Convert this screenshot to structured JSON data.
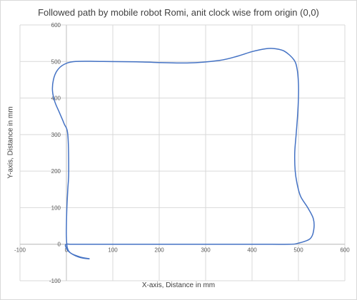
{
  "chart_data": {
    "type": "scatter",
    "title": "Followed path by mobile robot Romi, anit clock wise from origin (0,0)",
    "xlabel": "X-axis, Distance in mm",
    "ylabel": "Y-axis, Distance in mm",
    "xlim": [
      -100,
      600
    ],
    "ylim": [
      -100,
      600
    ],
    "xticks": [
      -100,
      0,
      100,
      200,
      300,
      400,
      500,
      600
    ],
    "yticks": [
      -100,
      0,
      100,
      200,
      300,
      400,
      500,
      600
    ],
    "grid": true,
    "legend": "none",
    "series": [
      {
        "color": "#4472c4",
        "style": "smooth-line",
        "x": [
          50,
          30,
          10,
          2,
          0,
          0,
          1,
          3,
          5,
          3,
          -5,
          -15,
          -25,
          -30,
          -28,
          -20,
          -5,
          20,
          80,
          150,
          260,
          330,
          370,
          400,
          430,
          450,
          470,
          490,
          497,
          500,
          500,
          498,
          495,
          492,
          493,
          498,
          505,
          520,
          532,
          533,
          525,
          500,
          480,
          400,
          300,
          200,
          100,
          30,
          10,
          0,
          -2,
          5,
          20,
          35,
          50
        ],
        "y": [
          -40,
          -35,
          -25,
          -10,
          20,
          50,
          100,
          150,
          200,
          300,
          330,
          360,
          390,
          420,
          450,
          475,
          492,
          500,
          500,
          499,
          496,
          503,
          515,
          527,
          535,
          535,
          528,
          505,
          480,
          440,
          400,
          350,
          300,
          250,
          200,
          160,
          130,
          100,
          70,
          40,
          15,
          3,
          0,
          0,
          0,
          0,
          0,
          0,
          0,
          0,
          -5,
          -20,
          -32,
          -38,
          -40
        ]
      }
    ]
  }
}
